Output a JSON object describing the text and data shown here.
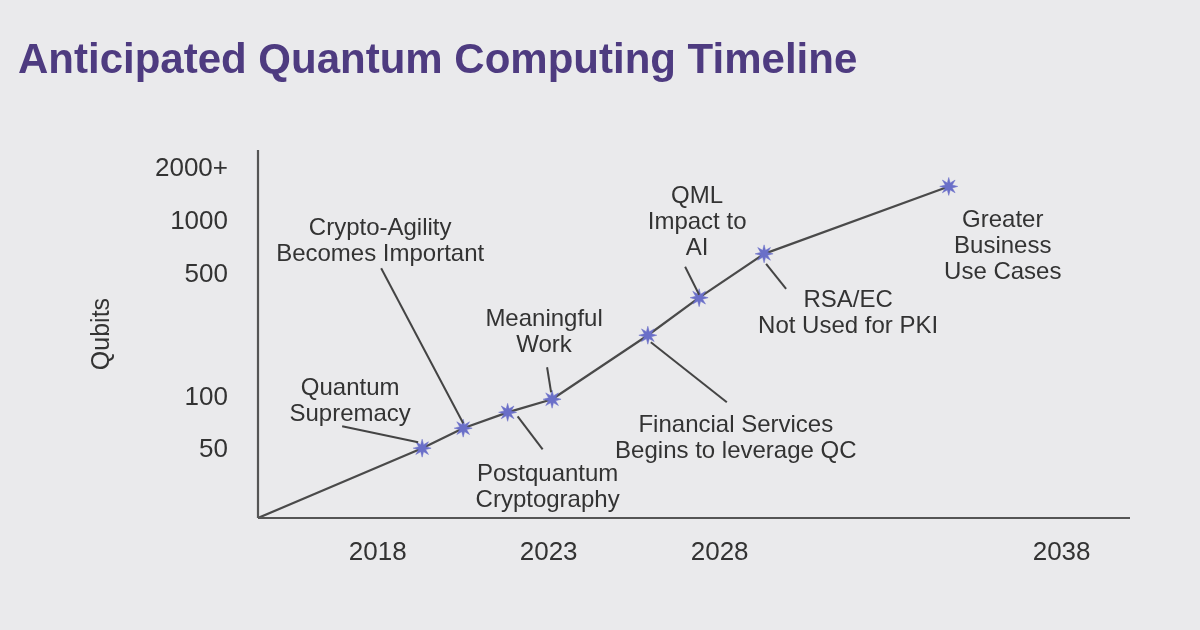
{
  "chart_data": {
    "type": "line",
    "title": "Anticipated Quantum Computing Timeline",
    "ylabel": "Qubits",
    "xlim": [
      2014.5,
      2040
    ],
    "xticks": [
      2018,
      2023,
      2028,
      2038
    ],
    "ylim": [
      20,
      2500
    ],
    "yticks": [
      50,
      100,
      500,
      1000,
      {
        "value": 2000,
        "label": "2000+"
      }
    ],
    "log": "y",
    "series": [
      {
        "color": "#4a4a4a",
        "marker": "none",
        "x": [
          2014.5,
          2019.3,
          2020.5,
          2021.8,
          2023.1,
          2025.9,
          2027.4,
          2029.3,
          2034.7
        ],
        "values": [
          20,
          50,
          65,
          80,
          95,
          220,
          360,
          640,
          1550
        ]
      },
      {
        "type": "scatter",
        "color": "#6a6fc8",
        "marker": "star",
        "x": [
          2019.3,
          2020.5,
          2021.8,
          2023.1,
          2025.9,
          2027.4,
          2029.3,
          2034.7
        ],
        "values": [
          50,
          65,
          80,
          95,
          220,
          360,
          640,
          1550
        ]
      }
    ],
    "annotations": [
      {
        "text": "Quantum\nSupremacy",
        "x": 2019.3,
        "y": 50
      },
      {
        "text": "Crypto-Agility\nBecomes Important",
        "x": 2020.5,
        "y": 65
      },
      {
        "text": "Postquantum\nCryptography",
        "x": 2021.8,
        "y": 80
      },
      {
        "text": "Meaningful\nWork",
        "x": 2023.1,
        "y": 95
      },
      {
        "text": "Financial Services\nBegins to leverage QC",
        "x": 2025.9,
        "y": 220
      },
      {
        "text": "QML\nImpact to\nAI",
        "x": 2027.4,
        "y": 360
      },
      {
        "text": "RSA/EC\nNot Used for PKI",
        "x": 2029.3,
        "y": 640
      },
      {
        "text": "Greater\nBusiness\nUse Cases",
        "x": 2034.7,
        "y": 1550
      }
    ]
  }
}
